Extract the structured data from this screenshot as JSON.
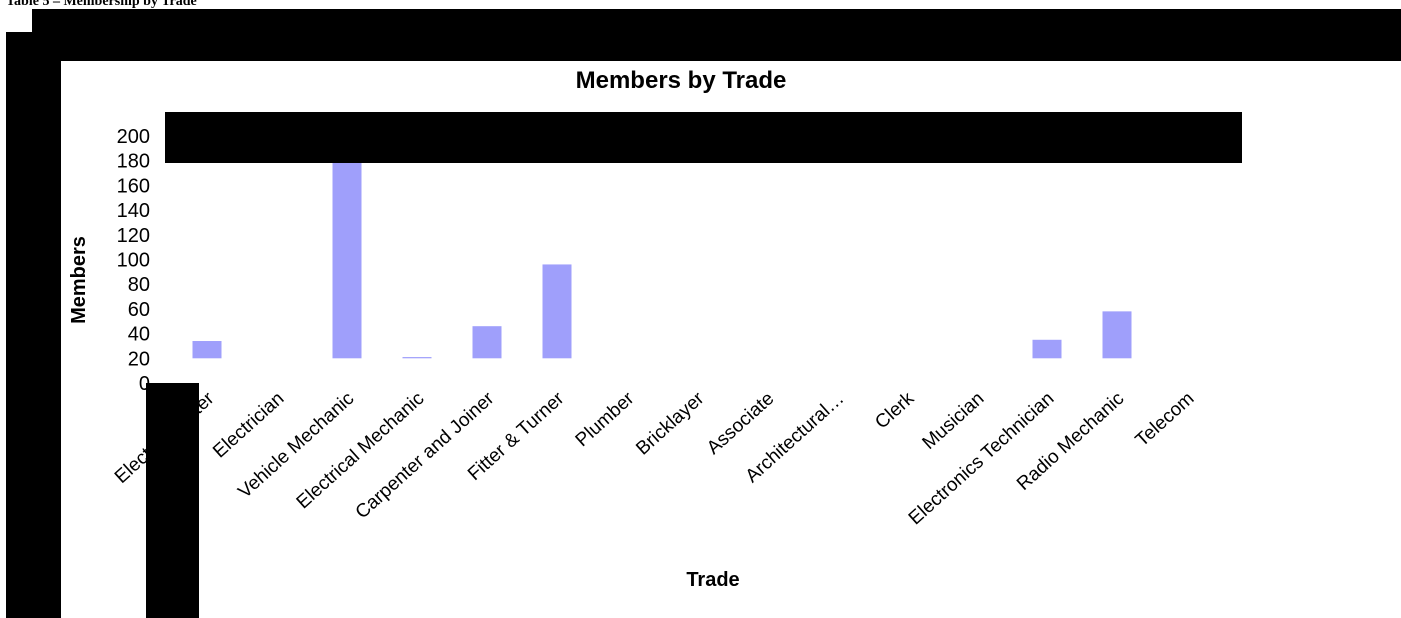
{
  "caption": "Table 5 – Membership by Trade",
  "colors": {
    "bar": "#9f9ffb",
    "redaction": "#000000"
  },
  "chart_data": {
    "type": "bar",
    "title": "Members by Trade",
    "xlabel": "Trade",
    "ylabel": "Members",
    "ylim": [
      0,
      200
    ],
    "yticks": [
      0,
      20,
      40,
      60,
      80,
      100,
      120,
      140,
      160,
      180,
      200
    ],
    "grid": false,
    "legend": "none",
    "categories": [
      "Electrical Fitter",
      "Electrician",
      "Vehicle Mechanic",
      "Electrical Mechanic",
      "Carpenter and Joiner",
      "Fitter & Turner",
      "Plumber",
      "Bricklayer",
      "Associate",
      "Architectural…",
      "Clerk",
      "Musician",
      "Electronics Technician",
      "Radio Mechanic",
      "Telecom"
    ],
    "values": [
      34,
      0,
      180,
      21,
      46,
      96,
      0,
      0,
      0,
      0,
      0,
      0,
      35,
      58,
      0
    ]
  }
}
